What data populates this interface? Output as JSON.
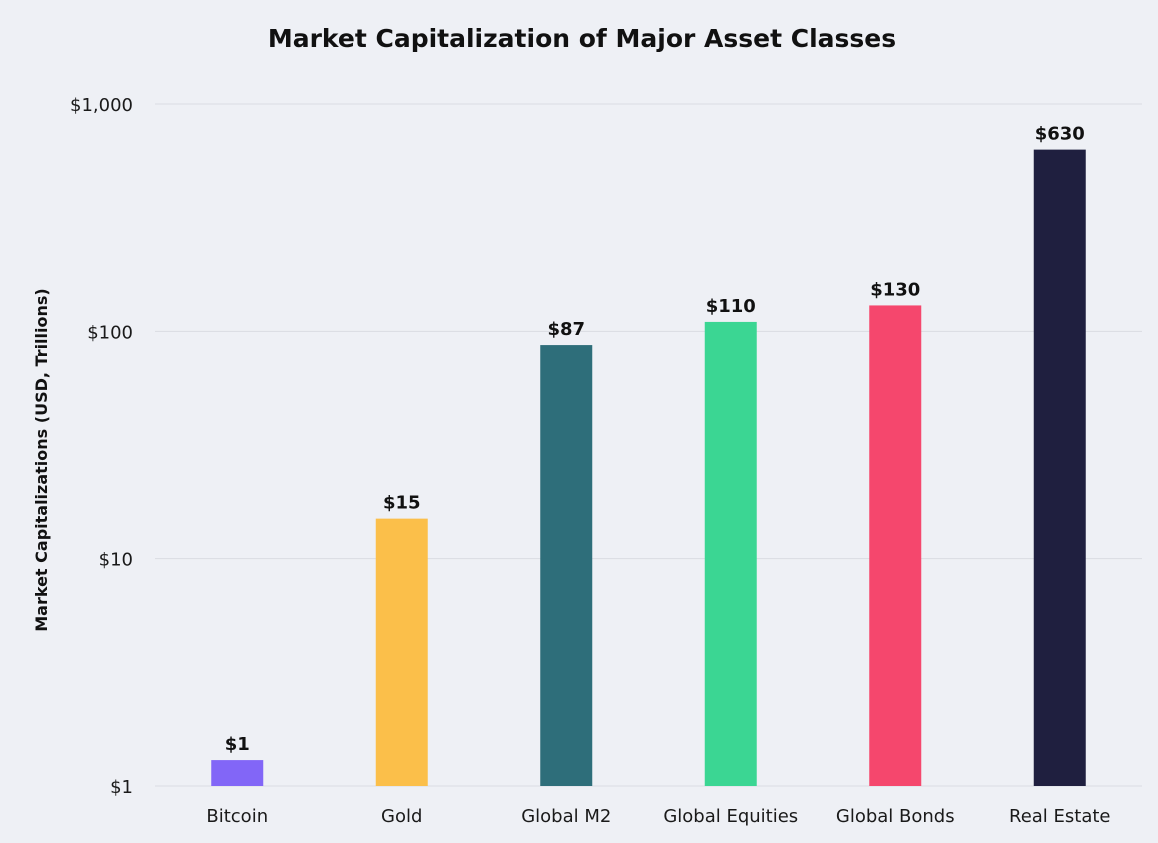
{
  "chart_data": {
    "type": "bar",
    "title": "Market Capitalization of Major Asset Classes",
    "ylabel": "Market Capitalizations (USD, Trillions)",
    "xlabel": "",
    "yscale": "log",
    "ylim": [
      1,
      1000
    ],
    "yticks": [
      {
        "value": 1,
        "label": "$1"
      },
      {
        "value": 10,
        "label": "$10"
      },
      {
        "value": 100,
        "label": "$100"
      },
      {
        "value": 1000,
        "label": "$1,000"
      }
    ],
    "grid": true,
    "categories": [
      "Bitcoin",
      "Gold",
      "Global M2",
      "Global Equities",
      "Global Bonds",
      "Real Estate"
    ],
    "values": [
      1.3,
      15,
      87,
      110,
      130,
      630
    ],
    "data_labels": [
      "$1",
      "$15",
      "$87",
      "$110",
      "$130",
      "$630"
    ],
    "colors": [
      "#8266f7",
      "#fbbf4a",
      "#2e6e7a",
      "#3bd693",
      "#f5476d",
      "#1f1f3f"
    ]
  }
}
